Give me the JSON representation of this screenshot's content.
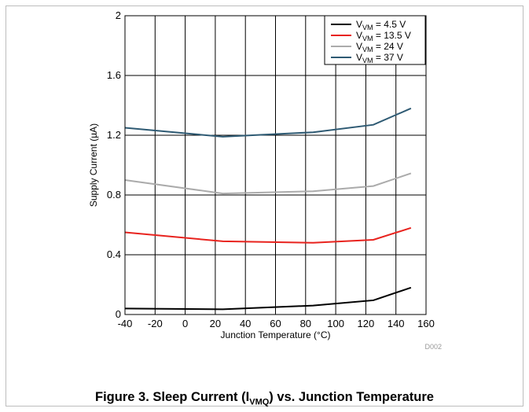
{
  "chart_data": {
    "type": "line",
    "xlabel": "Junction Temperature (°C)",
    "ylabel": "Supply Current (µA)",
    "xlim": [
      -40,
      160
    ],
    "ylim": [
      0,
      2
    ],
    "x_ticks": [
      "-40",
      "-20",
      "0",
      "20",
      "40",
      "60",
      "80",
      "100",
      "120",
      "140",
      "160"
    ],
    "y_ticks": [
      "0",
      "0.4",
      "0.8",
      "1.2",
      "1.6",
      "2"
    ],
    "grid": true,
    "legend_position": "top-right",
    "series": [
      {
        "name": "VVM = 4.5 V",
        "name_main": "V",
        "name_sub": "VM",
        "name_rest": " = 4.5 V",
        "color": "#000000",
        "x": [
          -40,
          25,
          85,
          125,
          150
        ],
        "y": [
          0.04,
          0.035,
          0.06,
          0.095,
          0.18
        ]
      },
      {
        "name": "VVM = 13.5 V",
        "name_main": "V",
        "name_sub": "VM",
        "name_rest": " = 13.5 V",
        "color": "#e8231e",
        "x": [
          -40,
          25,
          85,
          125,
          150
        ],
        "y": [
          0.55,
          0.49,
          0.48,
          0.5,
          0.58
        ]
      },
      {
        "name": "VVM = 24 V",
        "name_main": "V",
        "name_sub": "VM",
        "name_rest": " = 24 V",
        "color": "#ababab",
        "x": [
          -40,
          25,
          85,
          125,
          150
        ],
        "y": [
          0.9,
          0.81,
          0.825,
          0.86,
          0.945
        ]
      },
      {
        "name": "VVM = 37 V",
        "name_main": "V",
        "name_sub": "VM",
        "name_rest": " = 37 V",
        "color": "#2e5a73",
        "x": [
          -40,
          25,
          85,
          125,
          150
        ],
        "y": [
          1.25,
          1.19,
          1.22,
          1.27,
          1.38
        ]
      }
    ],
    "code": "D002"
  },
  "caption": {
    "prefix": "Figure 3. Sleep Current (I",
    "sub": "VMQ",
    "suffix": ") vs. Junction Temperature"
  }
}
